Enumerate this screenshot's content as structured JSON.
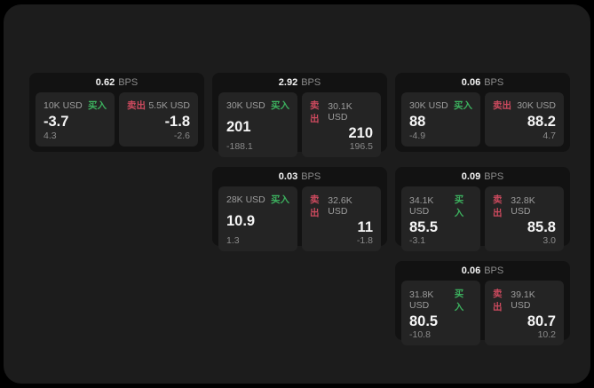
{
  "labels": {
    "bps_unit": "BPS",
    "buy": "买入",
    "sell": "卖出"
  },
  "colors": {
    "page_bg": "#000000",
    "surface_bg": "#1c1c1c",
    "card_bg": "#121212",
    "panel_bg": "#242424",
    "buy_accent": "#3cb05e",
    "sell_accent": "#cc4a5e",
    "value_text": "#f5f5f5",
    "muted_text": "#8c8c8c"
  },
  "cards": [
    {
      "bps": "0.62",
      "buy": {
        "amount": "10K USD",
        "value": "-3.7",
        "delta": "4.3"
      },
      "sell": {
        "amount": "5.5K USD",
        "value": "-1.8",
        "delta": "-2.6"
      }
    },
    {
      "bps": "2.92",
      "buy": {
        "amount": "30K USD",
        "value": "201",
        "delta": "-188.1"
      },
      "sell": {
        "amount": "30.1K USD",
        "value": "210",
        "delta": "196.5"
      }
    },
    {
      "bps": "0.06",
      "buy": {
        "amount": "30K USD",
        "value": "88",
        "delta": "-4.9"
      },
      "sell": {
        "amount": "30K USD",
        "value": "88.2",
        "delta": "4.7"
      }
    },
    {
      "bps": "0.03",
      "buy": {
        "amount": "28K USD",
        "value": "10.9",
        "delta": "1.3"
      },
      "sell": {
        "amount": "32.6K USD",
        "value": "11",
        "delta": "-1.8"
      }
    },
    {
      "bps": "0.09",
      "buy": {
        "amount": "34.1K USD",
        "value": "85.5",
        "delta": "-3.1"
      },
      "sell": {
        "amount": "32.8K USD",
        "value": "85.8",
        "delta": "3.0"
      }
    },
    {
      "bps": "0.06",
      "buy": {
        "amount": "31.8K USD",
        "value": "80.5",
        "delta": "-10.8"
      },
      "sell": {
        "amount": "39.1K USD",
        "value": "80.7",
        "delta": "10.2"
      }
    }
  ]
}
